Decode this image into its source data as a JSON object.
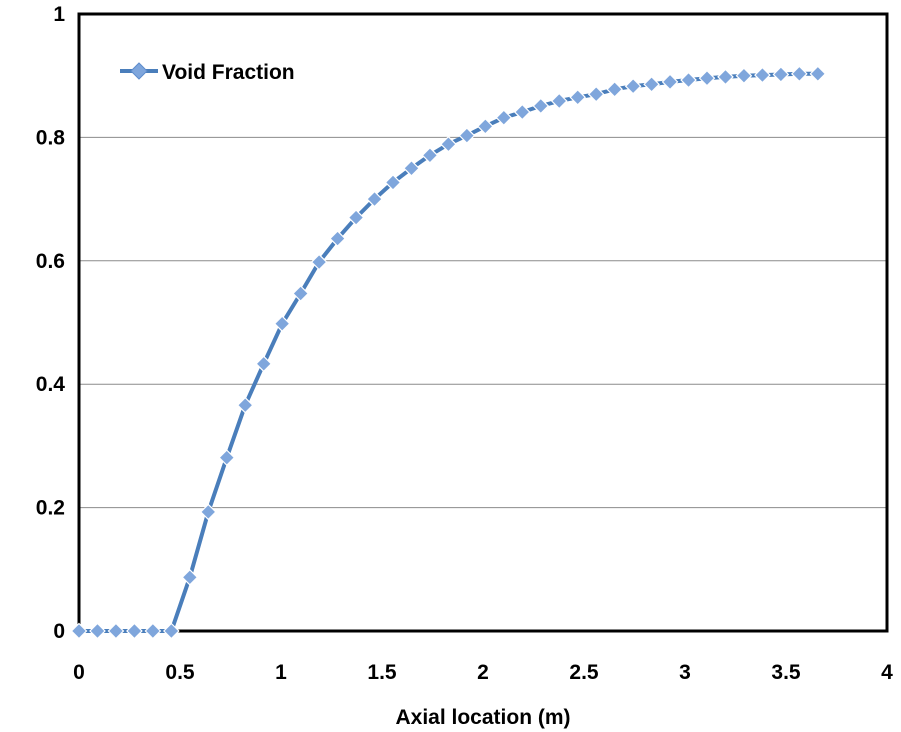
{
  "chart_data": {
    "type": "line",
    "title": "",
    "xlabel": "Axial location (m)",
    "ylabel": "",
    "xlim": [
      0,
      4
    ],
    "ylim": [
      0,
      1
    ],
    "xticks": [
      "0",
      "0.5",
      "1",
      "1.5",
      "2",
      "2.5",
      "3",
      "3.5",
      "4"
    ],
    "yticks": [
      "0",
      "0.2",
      "0.4",
      "0.6",
      "0.8",
      "1"
    ],
    "grid": "horizontal",
    "legend_position": "top-left",
    "line_color": "#4a7ebb",
    "marker_color": "#7fa6dc",
    "series": [
      {
        "name": "Void Fraction",
        "marker": "diamond",
        "x": [
          0,
          0.0914,
          0.1829,
          0.2743,
          0.3657,
          0.4572,
          0.5486,
          0.64,
          0.7315,
          0.8229,
          0.9144,
          1.0058,
          1.0972,
          1.1887,
          1.2801,
          1.3716,
          1.463,
          1.5544,
          1.6459,
          1.7373,
          1.8288,
          1.9202,
          2.0116,
          2.1031,
          2.1945,
          2.286,
          2.3774,
          2.4688,
          2.5603,
          2.6517,
          2.7432,
          2.8346,
          2.926,
          3.0175,
          3.1089,
          3.2004,
          3.2918,
          3.3832,
          3.4747,
          3.5661,
          3.6576
        ],
        "y": [
          0,
          0,
          0,
          0,
          0,
          0,
          0.087,
          0.193,
          0.281,
          0.366,
          0.433,
          0.498,
          0.547,
          0.598,
          0.636,
          0.67,
          0.7,
          0.727,
          0.75,
          0.771,
          0.789,
          0.803,
          0.818,
          0.832,
          0.841,
          0.851,
          0.859,
          0.865,
          0.87,
          0.878,
          0.883,
          0.886,
          0.89,
          0.893,
          0.896,
          0.898,
          0.9,
          0.901,
          0.902,
          0.903,
          0.903
        ]
      }
    ]
  }
}
